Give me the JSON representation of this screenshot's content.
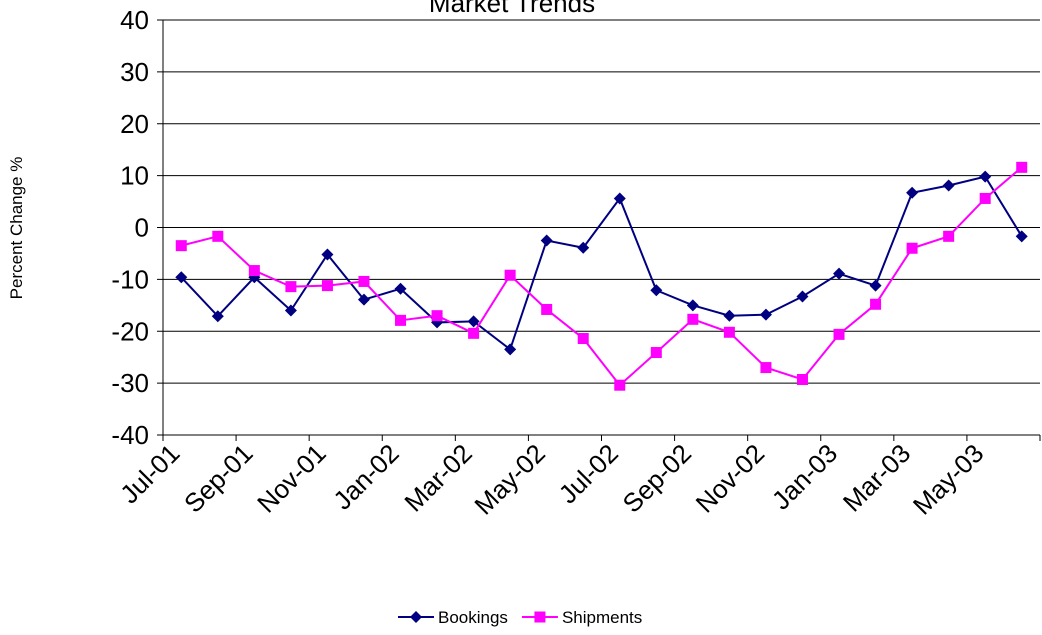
{
  "chart_data": {
    "type": "line",
    "title": "Market Trends",
    "y_label": "Percent Change %",
    "categories": [
      "Jul-01",
      null,
      "Sep-01",
      null,
      "Nov-01",
      null,
      "Jan-02",
      null,
      "Mar-02",
      null,
      "May-02",
      null,
      "Jul-02",
      null,
      "Sep-02",
      null,
      "Nov-02",
      null,
      "Jan-03",
      null,
      "Mar-03",
      null,
      "May-03",
      null
    ],
    "series": [
      {
        "name": "Bookings",
        "color": "#000080",
        "marker": "diamond",
        "values": [
          -9.6,
          -17.1,
          -9.6,
          -16,
          -5.2,
          -13.9,
          -11.8,
          -18.3,
          -18.1,
          -23.5,
          -2.5,
          -3.9,
          5.6,
          -12.1,
          -15,
          -17,
          -16.8,
          -13.3,
          -8.9,
          -11.2,
          6.7,
          8.1,
          9.8,
          -1.7
        ]
      },
      {
        "name": "Shipments",
        "color": "#ff00ff",
        "marker": "square",
        "values": [
          -3.5,
          -1.7,
          -8.3,
          -11.4,
          -11.2,
          -10.4,
          -17.9,
          -17,
          -20.4,
          -9.2,
          -15.8,
          -21.4,
          -30.4,
          -24.1,
          -17.7,
          -20.2,
          -27,
          -29.3,
          -20.6,
          -14.8,
          -4,
          -1.7,
          5.6,
          11.6
        ]
      }
    ],
    "ylim": [
      -40,
      40
    ],
    "yticks": [
      -40,
      -30,
      -20,
      -10,
      0,
      10,
      20,
      30,
      40
    ],
    "grid": true,
    "legend": "bottom"
  }
}
